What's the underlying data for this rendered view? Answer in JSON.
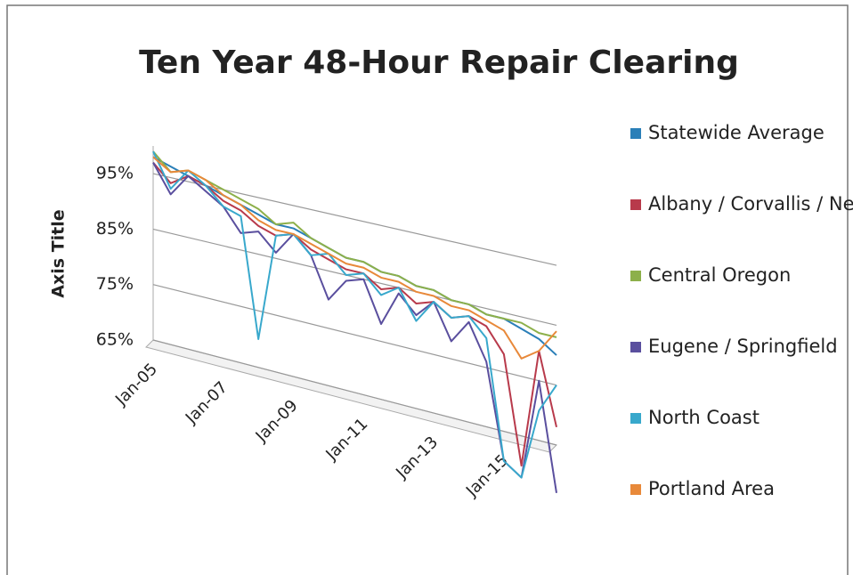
{
  "chart_data": {
    "type": "line3d",
    "title": "Ten Year 48-Hour Repair Clearing",
    "y_axis_label": "Axis Title",
    "categories": [
      "Jan-05",
      null,
      null,
      null,
      "Jan-07",
      null,
      null,
      null,
      "Jan-09",
      null,
      null,
      null,
      "Jan-11",
      null,
      null,
      null,
      "Jan-13",
      null,
      null,
      null,
      "Jan-15",
      null,
      null,
      null
    ],
    "series": [
      {
        "name": "Statewide Average",
        "color": "#2a7fb8",
        "values": [
          98,
          97,
          96,
          95,
          94,
          93,
          92,
          91,
          91,
          90,
          89,
          88,
          88,
          87,
          87,
          86,
          86,
          85,
          85,
          84,
          84,
          83,
          82,
          80
        ]
      },
      {
        "name": "Albany / Corvallis / Newport",
        "color": "#b83a4b",
        "values": [
          97,
          94,
          96,
          95,
          93,
          92,
          90,
          89,
          90,
          88,
          87,
          86,
          86,
          84,
          85,
          83,
          84,
          82,
          83,
          82,
          78,
          60,
          80,
          68
        ]
      },
      {
        "name": "Central Oregon",
        "color": "#8db04a",
        "values": [
          99,
          96,
          97,
          96,
          95,
          94,
          93,
          91,
          92,
          90,
          89,
          88,
          88,
          87,
          87,
          86,
          86,
          85,
          85,
          84,
          84,
          84,
          83,
          83
        ]
      },
      {
        "name": "Eugene / Springfield",
        "color": "#5a4f9e",
        "values": [
          97,
          92,
          96,
          94,
          92,
          88,
          89,
          86,
          90,
          87,
          80,
          84,
          85,
          78,
          84,
          81,
          84,
          78,
          82,
          76,
          60,
          58,
          75,
          57
        ]
      },
      {
        "name": "North Coast",
        "color": "#38a8cc",
        "values": [
          99,
          93,
          97,
          95,
          92,
          91,
          70,
          89,
          90,
          87,
          88,
          85,
          86,
          83,
          85,
          80,
          84,
          82,
          83,
          80,
          60,
          58,
          70,
          75
        ]
      },
      {
        "name": "Portland Area",
        "color": "#e8893a",
        "values": [
          98,
          96,
          97,
          96,
          94,
          93,
          91,
          90,
          90,
          89,
          88,
          87,
          87,
          86,
          86,
          85,
          85,
          84,
          84,
          83,
          82,
          78,
          80,
          84
        ]
      }
    ],
    "ylim": [
      65,
      100
    ],
    "yticks": [
      {
        "value": 65,
        "label": "65%"
      },
      {
        "value": 75,
        "label": "75%"
      },
      {
        "value": 85,
        "label": "85%"
      },
      {
        "value": 95,
        "label": "95%"
      }
    ],
    "grid": true,
    "legend": "right"
  }
}
